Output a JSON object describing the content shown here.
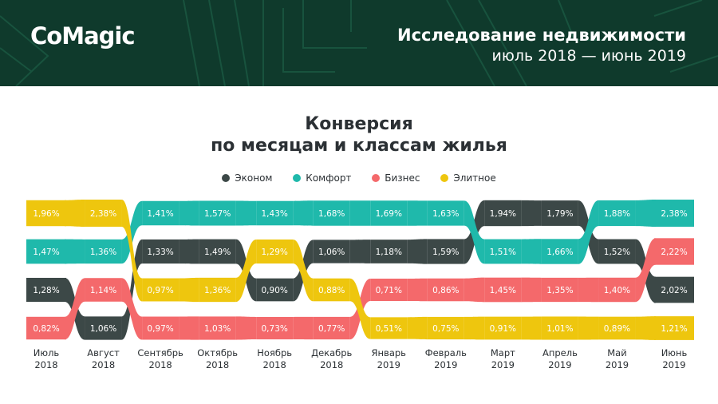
{
  "header": {
    "logo": "CoMagic",
    "title": "Исследование недвижимости",
    "subtitle": "июль 2018 — июнь 2019"
  },
  "colors": {
    "header_bg": "#0f3a2c",
    "econom": "#3c4847",
    "comfort": "#1fb9ab",
    "business": "#f4696b",
    "elite": "#eec60e"
  },
  "chart_data": {
    "type": "bump",
    "title_line1": "Конверсия",
    "title_line2": "по месяцам и классам жилья",
    "legend_position": "top-center",
    "categories": [
      {
        "month": "Июль",
        "year": "2018"
      },
      {
        "month": "Август",
        "year": "2018"
      },
      {
        "month": "Сентябрь",
        "year": "2018"
      },
      {
        "month": "Октябрь",
        "year": "2018"
      },
      {
        "month": "Ноябрь",
        "year": "2018"
      },
      {
        "month": "Декабрь",
        "year": "2018"
      },
      {
        "month": "Январь",
        "year": "2019"
      },
      {
        "month": "Февраль",
        "year": "2019"
      },
      {
        "month": "Март",
        "year": "2019"
      },
      {
        "month": "Апрель",
        "year": "2019"
      },
      {
        "month": "Май",
        "year": "2019"
      },
      {
        "month": "Июнь",
        "year": "2019"
      }
    ],
    "series": [
      {
        "key": "econom",
        "name": "Эконом",
        "values": [
          1.28,
          1.06,
          1.33,
          1.49,
          0.9,
          1.06,
          1.18,
          1.59,
          1.94,
          1.79,
          1.52,
          2.02
        ],
        "labels": [
          "1,28%",
          "1,06%",
          "1,33%",
          "1,49%",
          "0,90%",
          "1,06%",
          "1,18%",
          "1,59%",
          "1,94%",
          "1,79%",
          "1,52%",
          "2,02%"
        ]
      },
      {
        "key": "comfort",
        "name": "Комфорт",
        "values": [
          1.47,
          1.36,
          1.41,
          1.57,
          1.43,
          1.68,
          1.69,
          1.63,
          1.51,
          1.66,
          1.88,
          2.38
        ],
        "labels": [
          "1,47%",
          "1,36%",
          "1,41%",
          "1,57%",
          "1,43%",
          "1,68%",
          "1,69%",
          "1,63%",
          "1,51%",
          "1,66%",
          "1,88%",
          "2,38%"
        ]
      },
      {
        "key": "business",
        "name": "Бизнес",
        "values": [
          0.82,
          1.14,
          0.97,
          1.03,
          0.73,
          0.77,
          0.71,
          0.86,
          1.45,
          1.35,
          1.4,
          2.22
        ],
        "labels": [
          "0,82%",
          "1,14%",
          "0,97%",
          "1,03%",
          "0,73%",
          "0,77%",
          "0,71%",
          "0,86%",
          "1,45%",
          "1,35%",
          "1,40%",
          "2,22%"
        ]
      },
      {
        "key": "elite",
        "name": "Элитное",
        "values": [
          1.96,
          2.38,
          0.97,
          1.36,
          1.29,
          0.88,
          0.51,
          0.75,
          0.91,
          1.01,
          0.89,
          1.21
        ],
        "labels": [
          "1,96%",
          "2,38%",
          "0,97%",
          "1,36%",
          "1,29%",
          "0,88%",
          "0,51%",
          "0,75%",
          "0,91%",
          "1,01%",
          "0,89%",
          "1,21%"
        ]
      }
    ]
  }
}
